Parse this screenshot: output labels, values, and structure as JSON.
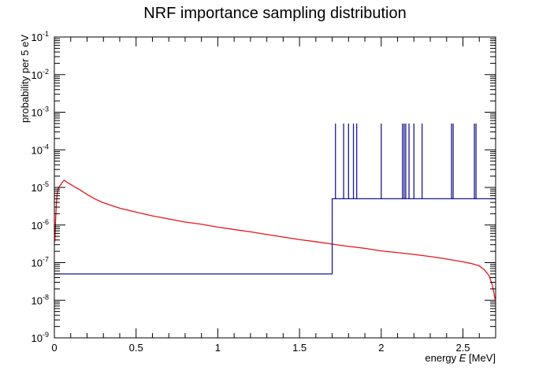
{
  "chart_data": {
    "type": "line",
    "title": "NRF importance sampling distribution",
    "xlabel": "energy E [MeV]",
    "ylabel": "probability per 5 eV",
    "xlim": [
      0,
      2.7
    ],
    "ylim": [
      1e-09,
      0.1
    ],
    "yscale": "log",
    "grid": false,
    "legend": "none",
    "x_ticks": [
      0,
      0.5,
      1,
      1.5,
      2,
      2.5
    ],
    "x_tick_labels": [
      "0",
      "0.5",
      "1",
      "1.5",
      "2",
      "2.5"
    ],
    "y_ticks": [
      1e-09,
      1e-08,
      1e-07,
      1e-06,
      1e-05,
      0.0001,
      0.001,
      0.01,
      0.1
    ],
    "y_tick_labels": [
      {
        "base": "10",
        "exp": "-9"
      },
      {
        "base": "10",
        "exp": "-8"
      },
      {
        "base": "10",
        "exp": "-7"
      },
      {
        "base": "10",
        "exp": "-6"
      },
      {
        "base": "10",
        "exp": "-5"
      },
      {
        "base": "10",
        "exp": "-4"
      },
      {
        "base": "10",
        "exp": "-3"
      },
      {
        "base": "10",
        "exp": "-2"
      },
      {
        "base": "10",
        "exp": "-1"
      }
    ],
    "series": [
      {
        "color": "#e8141a",
        "x": [
          0.003,
          0.005,
          0.008,
          0.012,
          0.016,
          0.02,
          0.025,
          0.03,
          0.04,
          0.05,
          0.06,
          0.07,
          0.08,
          0.1,
          0.12,
          0.15,
          0.2,
          0.25,
          0.3,
          0.4,
          0.5,
          0.6,
          0.7,
          0.8,
          0.9,
          1.0,
          1.1,
          1.2,
          1.3,
          1.4,
          1.5,
          1.6,
          1.7,
          1.8,
          1.9,
          2.0,
          2.1,
          2.2,
          2.3,
          2.4,
          2.5,
          2.55,
          2.6,
          2.63,
          2.66,
          2.68,
          2.69,
          2.7
        ],
        "y": [
          3.5e-07,
          6e-07,
          1.5e-06,
          3.5e-06,
          6e-06,
          8e-06,
          9.5e-06,
          1.05e-05,
          1.2e-05,
          1.4e-05,
          1.55e-05,
          1.45e-05,
          1.35e-05,
          1.2e-05,
          1.05e-05,
          9e-06,
          6.5e-06,
          4.9e-06,
          3.9e-06,
          2.8e-06,
          2.2e-06,
          1.75e-06,
          1.45e-06,
          1.2e-06,
          1.05e-06,
          8.8e-07,
          7.6e-07,
          6.6e-07,
          5.6e-07,
          4.8e-07,
          4.1e-07,
          3.6e-07,
          3.1e-07,
          2.7e-07,
          2.4e-07,
          2.05e-07,
          1.85e-07,
          1.65e-07,
          1.45e-07,
          1.25e-07,
          1.05e-07,
          9.5e-08,
          8.2e-08,
          6.5e-08,
          4.5e-08,
          2.5e-08,
          1.5e-08,
          9e-09
        ]
      },
      {
        "color": "#1a1a8f",
        "step": true,
        "x": [
          0,
          1.7,
          1.7,
          2.7
        ],
        "y": [
          5e-08,
          5e-08,
          5e-06,
          5e-06
        ],
        "spikes_x": [
          1.72,
          1.77,
          1.8,
          1.83,
          1.85,
          2.0,
          2.13,
          2.14,
          2.15,
          2.17,
          2.2,
          2.25,
          2.43,
          2.44,
          2.57,
          2.58
        ],
        "spike_y": 0.0005
      }
    ]
  }
}
